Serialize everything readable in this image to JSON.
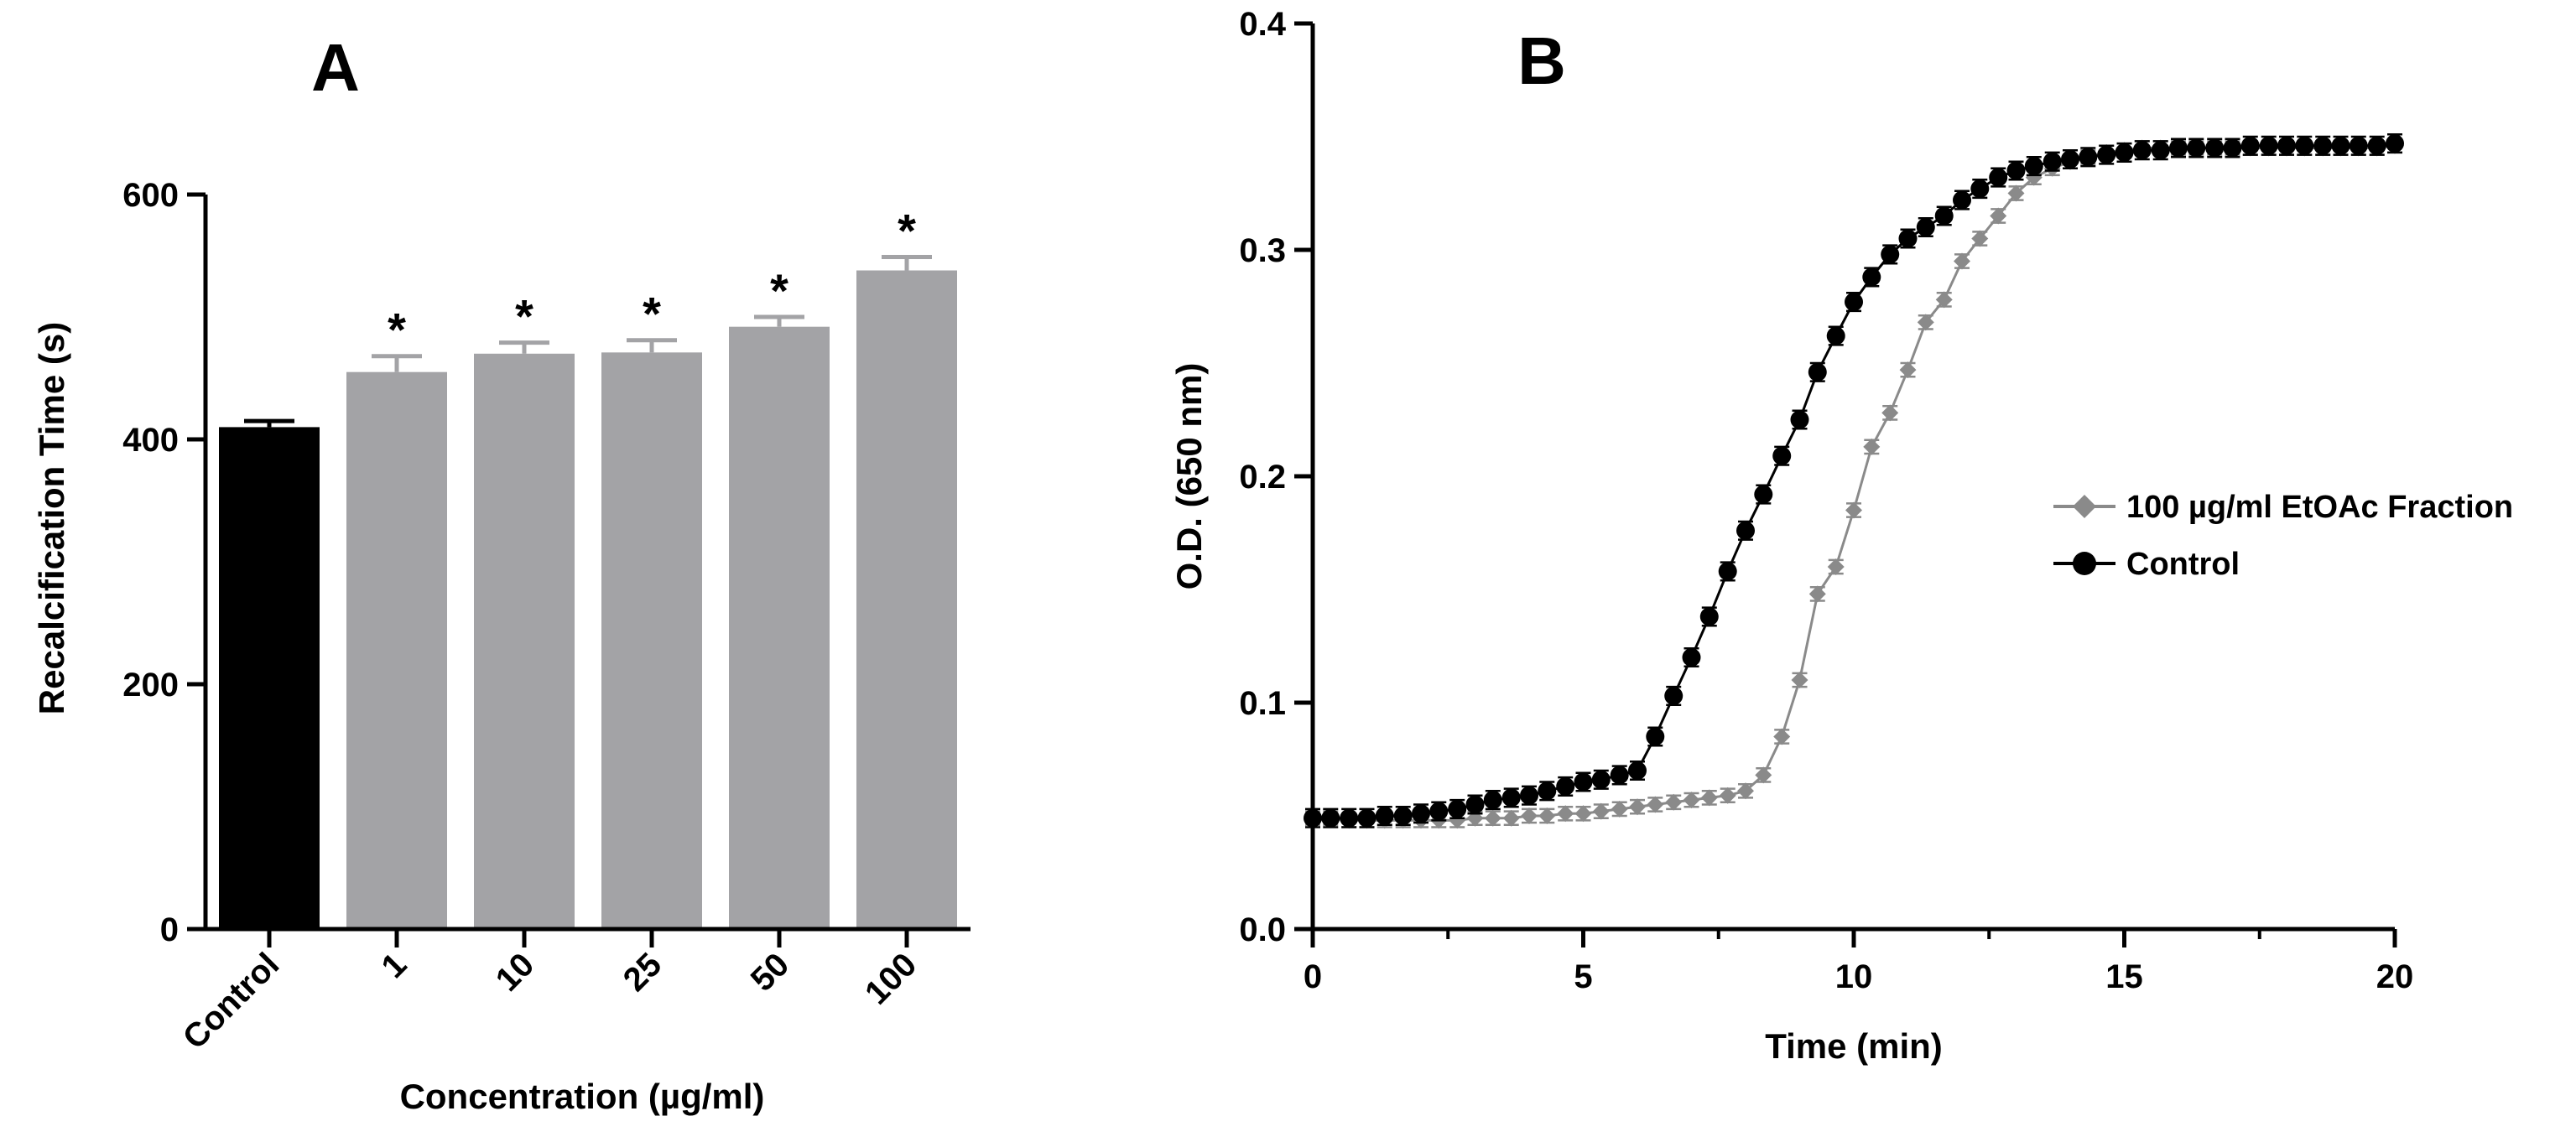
{
  "chart_data": [
    {
      "type": "bar",
      "panel_label": "A",
      "title": "",
      "xlabel": "Concentration (µg/ml)",
      "ylabel": "Recalcification Time (s)",
      "ylim": [
        0,
        600
      ],
      "yticks": [
        "0",
        "200",
        "400",
        "600"
      ],
      "categories": [
        "Control",
        "1",
        "10",
        "25",
        "50",
        "100"
      ],
      "values": [
        410,
        455,
        470,
        471,
        492,
        538
      ],
      "errors": [
        5,
        13,
        9,
        10,
        8,
        11
      ],
      "significance": [
        "",
        "*",
        "*",
        "*",
        "*",
        "*"
      ],
      "colors": [
        "#000000",
        "#a3a3a6",
        "#a3a3a6",
        "#a3a3a6",
        "#a3a3a6",
        "#a3a3a6"
      ]
    },
    {
      "type": "line",
      "panel_label": "B",
      "title": "",
      "xlabel": "Time (min)",
      "ylabel": "O.D. (650 nm)",
      "xlim": [
        0,
        20
      ],
      "ylim": [
        0,
        0.4
      ],
      "xticks": [
        "0",
        "5",
        "10",
        "15",
        "20"
      ],
      "yticks": [
        "0.0",
        "0.1",
        "0.2",
        "0.3",
        "0.4"
      ],
      "legend_position": "right",
      "series": [
        {
          "name": "100 µg/ml EtOAc Fraction",
          "color": "#8a8a8a",
          "marker": "diamond",
          "x": [
            0,
            0.33,
            0.67,
            1,
            1.33,
            1.67,
            2,
            2.33,
            2.67,
            3,
            3.33,
            3.67,
            4,
            4.33,
            4.67,
            5,
            5.33,
            5.67,
            6,
            6.33,
            6.67,
            7,
            7.33,
            7.67,
            8,
            8.33,
            8.67,
            9,
            9.33,
            9.67,
            10,
            10.33,
            10.67,
            11,
            11.33,
            11.67,
            12,
            12.33,
            12.67,
            13,
            13.33,
            13.67,
            14,
            14.33,
            14.67,
            15,
            15.33,
            15.67,
            16,
            16.33,
            16.67,
            17,
            17.33,
            17.67,
            18,
            18.33,
            18.67,
            19,
            19.33,
            19.67,
            20
          ],
          "y": [
            0.049,
            0.049,
            0.048,
            0.048,
            0.048,
            0.048,
            0.048,
            0.048,
            0.048,
            0.049,
            0.049,
            0.049,
            0.05,
            0.05,
            0.051,
            0.051,
            0.052,
            0.053,
            0.054,
            0.055,
            0.056,
            0.057,
            0.058,
            0.059,
            0.061,
            0.068,
            0.085,
            0.11,
            0.148,
            0.16,
            0.185,
            0.213,
            0.228,
            0.247,
            0.268,
            0.278,
            0.295,
            0.305,
            0.315,
            0.325,
            0.332,
            0.336,
            0.339,
            0.341,
            0.343,
            0.344,
            0.345,
            0.345,
            0.345,
            0.345,
            0.345,
            0.345,
            0.345,
            0.345,
            0.345,
            0.345,
            0.345,
            0.345,
            0.345,
            0.345,
            0.346
          ],
          "error": 0.003
        },
        {
          "name": "Control",
          "color": "#000000",
          "marker": "circle",
          "x": [
            0,
            0.33,
            0.67,
            1,
            1.33,
            1.67,
            2,
            2.33,
            2.67,
            3,
            3.33,
            3.67,
            4,
            4.33,
            4.67,
            5,
            5.33,
            5.67,
            6,
            6.33,
            6.67,
            7,
            7.33,
            7.67,
            8,
            8.33,
            8.67,
            9,
            9.33,
            9.67,
            10,
            10.33,
            10.67,
            11,
            11.33,
            11.67,
            12,
            12.33,
            12.67,
            13,
            13.33,
            13.67,
            14,
            14.33,
            14.67,
            15,
            15.33,
            15.67,
            16,
            16.33,
            16.67,
            17,
            17.33,
            17.67,
            18,
            18.33,
            18.67,
            19,
            19.33,
            19.67,
            20
          ],
          "y": [
            0.049,
            0.049,
            0.049,
            0.049,
            0.05,
            0.05,
            0.051,
            0.052,
            0.053,
            0.055,
            0.057,
            0.058,
            0.059,
            0.061,
            0.063,
            0.065,
            0.066,
            0.068,
            0.07,
            0.085,
            0.103,
            0.12,
            0.138,
            0.158,
            0.176,
            0.192,
            0.209,
            0.225,
            0.246,
            0.262,
            0.277,
            0.288,
            0.298,
            0.305,
            0.31,
            0.315,
            0.322,
            0.327,
            0.332,
            0.335,
            0.337,
            0.339,
            0.34,
            0.341,
            0.342,
            0.343,
            0.344,
            0.344,
            0.345,
            0.345,
            0.345,
            0.345,
            0.346,
            0.346,
            0.346,
            0.346,
            0.346,
            0.346,
            0.346,
            0.346,
            0.347
          ],
          "error": 0.004
        }
      ]
    }
  ]
}
